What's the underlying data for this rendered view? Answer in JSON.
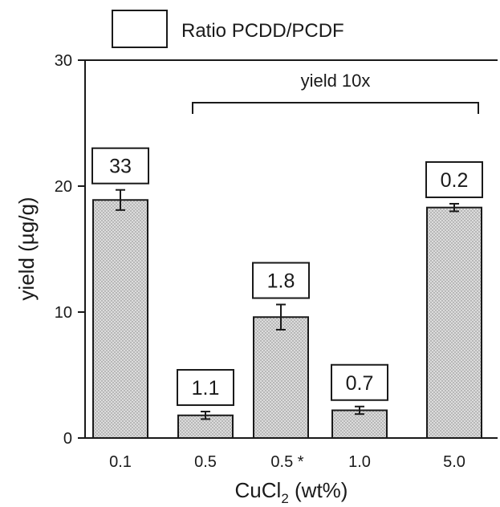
{
  "chart_data": {
    "type": "bar",
    "title": "",
    "xlabel_main": "CuCl",
    "xlabel_sub": "2",
    "xlabel_rest": " (wt%)",
    "ylabel": "yield (µg/g)",
    "ylim": [
      0,
      30
    ],
    "yticks": [
      0,
      10,
      20,
      30
    ],
    "grid": false,
    "categories": [
      "0.1",
      "0.5",
      "0.5 *",
      "1.0",
      "5.0"
    ],
    "values": [
      18.9,
      1.8,
      9.6,
      2.2,
      18.3
    ],
    "errors": [
      0.8,
      0.3,
      1.0,
      0.3,
      0.3
    ],
    "bar_labels": [
      "33",
      "1.1",
      "1.8",
      "0.7",
      "0.2"
    ],
    "legend": {
      "label": "Ratio PCDD/PCDF",
      "position": "top-left"
    },
    "annotation": {
      "text": "yield 10x",
      "spans_categories": [
        1,
        4
      ]
    },
    "colors": {
      "bar_fill": "#d9d9d9",
      "bar_stipple": "#7a7a7a",
      "ink": "#1a1a1a",
      "background": "#ffffff"
    }
  }
}
